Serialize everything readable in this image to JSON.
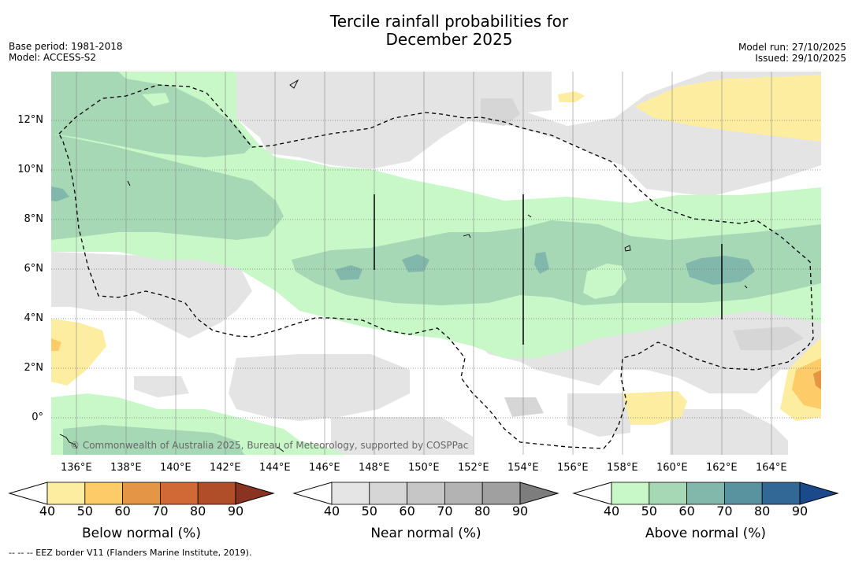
{
  "title_line1": "Tercile rainfall probabilities for",
  "title_line2": "December 2025",
  "base_period": "Base period: 1981-2018",
  "model": "Model: ACCESS-S2",
  "model_run": "Model run: 27/10/2025",
  "issued": "Issued: 29/10/2025",
  "copyright": "© Commonwealth of Australia 2025, Bureau of Meteorology, supported by COSPPac",
  "footnote": "-- -- -- EEZ border V11 (Flanders Marine Institute, 2019).",
  "map": {
    "lat_labels": [
      "12°N",
      "10°N",
      "8°N",
      "6°N",
      "4°N",
      "2°N",
      "0°"
    ],
    "lon_labels": [
      "136°E",
      "138°E",
      "140°E",
      "142°E",
      "144°E",
      "146°E",
      "148°E",
      "150°E",
      "152°E",
      "154°E",
      "156°E",
      "158°E",
      "160°E",
      "162°E",
      "164°E"
    ]
  },
  "colorbars": [
    {
      "caption": "Below normal (%)",
      "ticks": [
        "40",
        "50",
        "60",
        "70",
        "80",
        "90"
      ],
      "colors": [
        "#fdeda0",
        "#fdcb68",
        "#e49646",
        "#d06936",
        "#b04e29",
        "#8a3322"
      ]
    },
    {
      "caption": "Near normal (%)",
      "ticks": [
        "40",
        "50",
        "60",
        "70",
        "80",
        "90"
      ],
      "colors": [
        "#e5e5e5",
        "#d6d6d6",
        "#c6c6c6",
        "#b3b3b3",
        "#a0a0a0",
        "#7d7d7d"
      ]
    },
    {
      "caption": "Above normal (%)",
      "ticks": [
        "40",
        "50",
        "60",
        "70",
        "80",
        "90"
      ],
      "colors": [
        "#c8f8c8",
        "#a6d8b6",
        "#82b8ac",
        "#5a93a0",
        "#316896",
        "#1b4a8a"
      ]
    }
  ]
}
